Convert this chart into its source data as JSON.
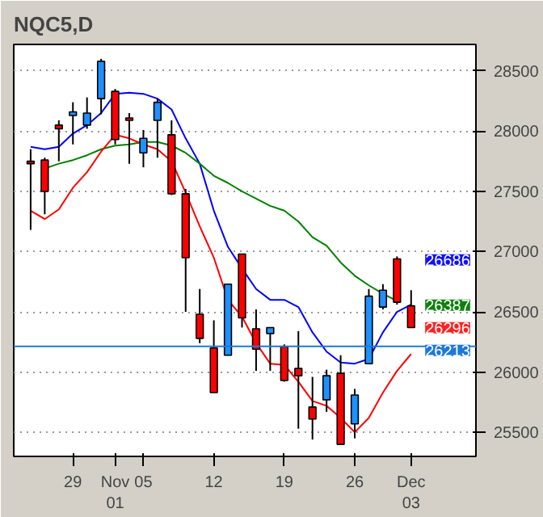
{
  "chart_data": {
    "type": "candlestick",
    "title": "NQC5,D",
    "categories": [
      null,
      null,
      null,
      "29",
      null,
      null,
      "Nov\n01",
      null,
      "05",
      null,
      null,
      null,
      null,
      "12",
      null,
      null,
      null,
      null,
      "19",
      null,
      null,
      null,
      null,
      "26",
      null,
      null,
      null,
      "Dec\n03"
    ],
    "ohlc": [
      [
        27750,
        27850,
        27180,
        27730
      ],
      [
        27760,
        27780,
        27310,
        27500
      ],
      [
        28050,
        28090,
        27750,
        28020
      ],
      [
        28130,
        28240,
        27890,
        28160
      ],
      [
        28050,
        28280,
        28020,
        28150
      ],
      [
        28270,
        28600,
        28140,
        28580
      ],
      [
        28330,
        28350,
        27890,
        27930
      ],
      [
        28110,
        28150,
        27730,
        28090
      ],
      [
        27820,
        28010,
        27700,
        27940
      ],
      [
        28090,
        28270,
        27780,
        28240
      ],
      [
        27970,
        28090,
        27470,
        27480
      ],
      [
        27480,
        27520,
        26500,
        26950
      ],
      [
        26480,
        26690,
        26240,
        26280
      ],
      [
        26200,
        26430,
        25830,
        25830
      ],
      [
        26140,
        26730,
        26140,
        26730
      ],
      [
        26980,
        26980,
        26370,
        26450
      ],
      [
        26360,
        26520,
        26010,
        26190
      ],
      [
        26320,
        26370,
        26010,
        26370
      ],
      [
        26210,
        26230,
        25920,
        25930
      ],
      [
        26030,
        26340,
        25530,
        25970
      ],
      [
        25710,
        25960,
        25440,
        25610
      ],
      [
        25770,
        26020,
        25670,
        25970
      ],
      [
        25990,
        26140,
        25400,
        25400
      ],
      [
        25570,
        25860,
        25450,
        25810
      ],
      [
        26070,
        26690,
        26070,
        26630
      ],
      [
        26540,
        26730,
        26520,
        26680
      ],
      [
        26940,
        26960,
        26560,
        26580
      ],
      [
        26550,
        26680,
        26370,
        26370
      ]
    ],
    "series": [
      {
        "type": "line",
        "color": "#0000ff",
        "values": [
          27870,
          27850,
          27870,
          27980,
          28050,
          28150,
          28310,
          28320,
          28310,
          28270,
          28180,
          27940,
          27730,
          27340,
          27040,
          26860,
          26690,
          26600,
          26600,
          26540,
          26330,
          26170,
          26080,
          26070,
          26110,
          26330,
          26500,
          26560
        ]
      },
      {
        "type": "line",
        "color": "#008000",
        "values": [
          null,
          27690,
          27730,
          27760,
          27800,
          27850,
          27880,
          27890,
          27910,
          27910,
          27880,
          27820,
          27730,
          27630,
          27570,
          27500,
          27440,
          27380,
          27340,
          27250,
          27120,
          27050,
          26910,
          26800,
          26720,
          26650,
          26590,
          null
        ]
      },
      {
        "type": "line",
        "color": "#ff0000",
        "values": [
          27340,
          27270,
          27350,
          27530,
          27660,
          27830,
          27970,
          27940,
          27890,
          27850,
          27750,
          27490,
          27210,
          26950,
          26600,
          26460,
          26240,
          26070,
          26060,
          25920,
          25760,
          25720,
          25620,
          25500,
          25620,
          25830,
          26010,
          26150
        ]
      }
    ],
    "ylim": [
      25300,
      28720
    ],
    "yticks": [
      25500,
      26000,
      26500,
      27000,
      27500,
      28000,
      28500
    ],
    "ref_lines": [
      {
        "axis": "y",
        "value": 26213,
        "label": "26213",
        "color": "#1e78d8"
      }
    ],
    "annotations": [
      "26686",
      "26387",
      "26296"
    ],
    "grid": "y"
  }
}
